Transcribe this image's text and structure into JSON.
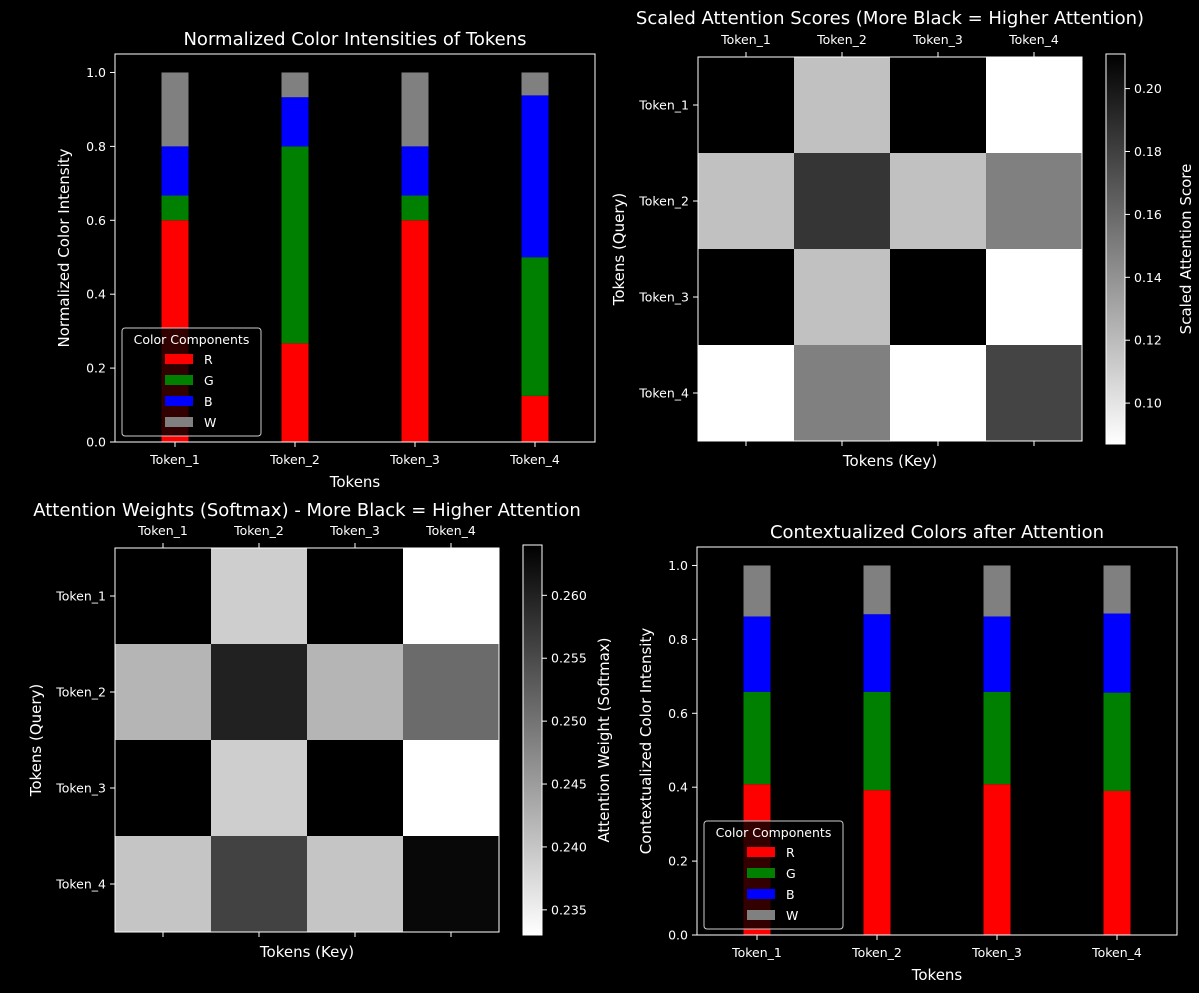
{
  "chart_data": [
    {
      "id": "stack1",
      "type": "bar",
      "stacked": true,
      "title": "Normalized Color Intensities of Tokens",
      "xlabel": "Tokens",
      "ylabel": "Normalized Color Intensity",
      "ylim": [
        0,
        1.05
      ],
      "yticks": [
        "0.0",
        "0.2",
        "0.4",
        "0.6",
        "0.8",
        "1.0"
      ],
      "categories": [
        "Token_1",
        "Token_2",
        "Token_3",
        "Token_4"
      ],
      "legend": {
        "title": "Color Components",
        "placement": "lower-left"
      },
      "series": [
        {
          "name": "R",
          "color": "#ff0000",
          "values": [
            0.6,
            0.267,
            0.6,
            0.125
          ]
        },
        {
          "name": "G",
          "color": "#008000",
          "values": [
            0.067,
            0.533,
            0.067,
            0.375
          ]
        },
        {
          "name": "B",
          "color": "#0000ff",
          "values": [
            0.133,
            0.133,
            0.133,
            0.438
          ]
        },
        {
          "name": "W",
          "color": "#808080",
          "values": [
            0.2,
            0.067,
            0.2,
            0.062
          ]
        }
      ]
    },
    {
      "id": "heat1",
      "type": "heatmap",
      "title": "Scaled Attention Scores (More Black = Higher Attention)",
      "xlabel": "Tokens (Key)",
      "ylabel": "Tokens (Query)",
      "x_categories": [
        "Token_1",
        "Token_2",
        "Token_3",
        "Token_4"
      ],
      "y_categories": [
        "Token_1",
        "Token_2",
        "Token_3",
        "Token_4"
      ],
      "colorbar_label": "Scaled Attention Score",
      "colormap": "white-to-black",
      "vmin": 0.087,
      "vmax": 0.211,
      "colorbar_ticks": [
        "0.10",
        "0.12",
        "0.14",
        "0.16",
        "0.18",
        "0.20"
      ],
      "values": [
        [
          0.211,
          0.117,
          0.211,
          0.087
        ],
        [
          0.117,
          0.185,
          0.117,
          0.149
        ],
        [
          0.211,
          0.117,
          0.211,
          0.087
        ],
        [
          0.087,
          0.149,
          0.087,
          0.178
        ]
      ]
    },
    {
      "id": "heat2",
      "type": "heatmap",
      "title": "Attention Weights (Softmax) - More Black = Higher Attention",
      "xlabel": "Tokens (Key)",
      "ylabel": "Tokens (Query)",
      "x_categories": [
        "Token_1",
        "Token_2",
        "Token_3",
        "Token_4"
      ],
      "y_categories": [
        "Token_1",
        "Token_2",
        "Token_3",
        "Token_4"
      ],
      "colorbar_label": "Attention Weight (Softmax)",
      "colormap": "white-to-black",
      "vmin": 0.233,
      "vmax": 0.264,
      "colorbar_ticks": [
        "0.235",
        "0.240",
        "0.245",
        "0.250",
        "0.255",
        "0.260"
      ],
      "values": [
        [
          0.264,
          0.239,
          0.264,
          0.233
        ],
        [
          0.242,
          0.26,
          0.242,
          0.251
        ],
        [
          0.264,
          0.239,
          0.264,
          0.233
        ],
        [
          0.24,
          0.256,
          0.24,
          0.263
        ]
      ]
    },
    {
      "id": "stack2",
      "type": "bar",
      "stacked": true,
      "title": "Contextualized Colors after Attention",
      "xlabel": "Tokens",
      "ylabel": "Contextualized Color Intensity",
      "ylim": [
        0,
        1.05
      ],
      "yticks": [
        "0.0",
        "0.2",
        "0.4",
        "0.6",
        "0.8",
        "1.0"
      ],
      "categories": [
        "Token_1",
        "Token_2",
        "Token_3",
        "Token_4"
      ],
      "legend": {
        "title": "Color Components",
        "placement": "lower-left"
      },
      "series": [
        {
          "name": "R",
          "color": "#ff0000",
          "values": [
            0.408,
            0.392,
            0.408,
            0.39
          ]
        },
        {
          "name": "G",
          "color": "#008000",
          "values": [
            0.25,
            0.266,
            0.25,
            0.266
          ]
        },
        {
          "name": "B",
          "color": "#0000ff",
          "values": [
            0.204,
            0.21,
            0.204,
            0.214
          ]
        },
        {
          "name": "W",
          "color": "#808080",
          "values": [
            0.138,
            0.132,
            0.138,
            0.13
          ]
        }
      ]
    }
  ]
}
